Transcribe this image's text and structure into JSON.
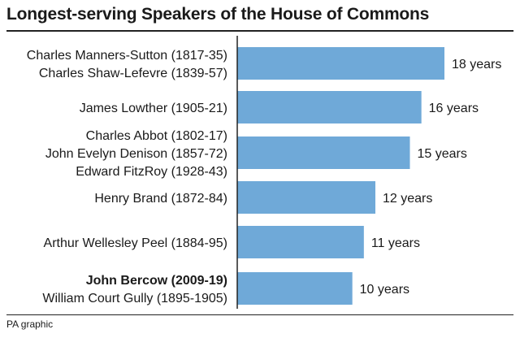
{
  "title": "Longest-serving Speakers of the House of Commons",
  "source": "PA graphic",
  "colors": {
    "bar": "#6fa9d8",
    "text": "#1a1a1a",
    "rule": "#222222"
  },
  "chart_data": {
    "type": "bar",
    "orientation": "horizontal",
    "title": "Longest-serving Speakers of the House of Commons",
    "categories": [
      [
        "Charles Manners-Sutton (1817-35)",
        "Charles Shaw-Lefevre (1839-57)"
      ],
      [
        "James Lowther (1905-21)"
      ],
      [
        "Charles Abbot (1802-17)",
        "John Evelyn Denison (1857-72)",
        "Edward FitzRoy (1928-43)"
      ],
      [
        "Henry Brand (1872-84)"
      ],
      [
        "Arthur Wellesley Peel (1884-95)"
      ],
      [
        "John Bercow (2009-19)",
        "William Court Gully (1895-1905)"
      ]
    ],
    "bold_names": [
      "John Bercow (2009-19)"
    ],
    "values": [
      18,
      16,
      15,
      12,
      11,
      10
    ],
    "value_labels": [
      "18 years",
      "16 years",
      "15 years",
      "12 years",
      "11 years",
      "10 years"
    ],
    "xlim": [
      0,
      18
    ],
    "grid": false,
    "legend": "none"
  }
}
